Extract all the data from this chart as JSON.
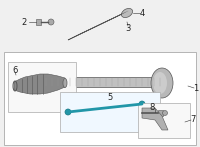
{
  "bg_color": "#f0f0f0",
  "part1_label": "1",
  "part2_label": "2",
  "part3_label": "3",
  "part4_label": "4",
  "part5_label": "5",
  "part6_label": "6",
  "part7_label": "7",
  "part8_label": "8",
  "highlight_color": "#2196a8",
  "part_gray": "#aaaaaa",
  "part_dark": "#555555"
}
